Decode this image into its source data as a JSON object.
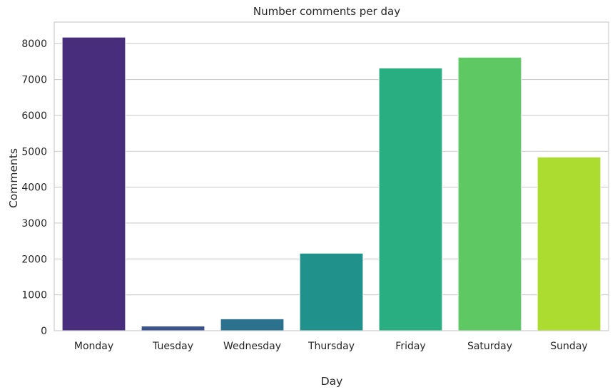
{
  "chart_data": {
    "type": "bar",
    "title": "Number comments per day",
    "xlabel": "Day",
    "ylabel": "Comments",
    "categories": [
      "Monday",
      "Tuesday",
      "Wednesday",
      "Thursday",
      "Friday",
      "Saturday",
      "Sunday"
    ],
    "values": [
      8180,
      130,
      330,
      2160,
      7320,
      7620,
      4840
    ],
    "bar_colors": [
      "#472d7b",
      "#3b528b",
      "#2c728e",
      "#21918c",
      "#28ae80",
      "#5ec962",
      "#addc30"
    ],
    "ylim": [
      0,
      8600
    ],
    "yticks": [
      0,
      1000,
      2000,
      3000,
      4000,
      5000,
      6000,
      7000,
      8000
    ],
    "ytick_labels": [
      "0",
      "1000",
      "2000",
      "3000",
      "4000",
      "5000",
      "6000",
      "7000",
      "8000"
    ],
    "grid": "horizontal",
    "style": {
      "grid_color": "#cccccc",
      "spine_color": "#cccccc",
      "text_color": "#262626",
      "background": "#ffffff"
    }
  }
}
